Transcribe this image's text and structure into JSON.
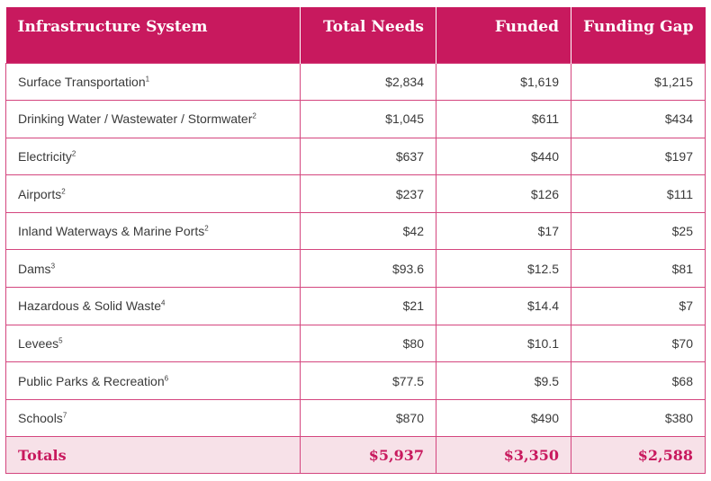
{
  "header": {
    "system": "Infrastructure System",
    "total_needs": "Total Needs",
    "funded": "Funded",
    "gap": "Funding Gap"
  },
  "rows": [
    {
      "system": "Surface Transportation",
      "note": "1",
      "total": "$2,834",
      "funded": "$1,619",
      "gap": "$1,215"
    },
    {
      "system": "Drinking Water / Wastewater / Stormwater",
      "note": "2",
      "total": "$1,045",
      "funded": "$611",
      "gap": "$434"
    },
    {
      "system": "Electricity",
      "note": "2",
      "total": "$637",
      "funded": "$440",
      "gap": "$197"
    },
    {
      "system": "Airports",
      "note": "2",
      "total": "$237",
      "funded": "$126",
      "gap": "$111"
    },
    {
      "system": "Inland Waterways & Marine Ports",
      "note": "2",
      "total": "$42",
      "funded": "$17",
      "gap": "$25"
    },
    {
      "system": "Dams",
      "note": "3",
      "total": "$93.6",
      "funded": "$12.5",
      "gap": "$81"
    },
    {
      "system": "Hazardous & Solid Waste",
      "note": "4",
      "total": "$21",
      "funded": "$14.4",
      "gap": "$7"
    },
    {
      "system": "Levees",
      "note": "5",
      "total": "$80",
      "funded": "$10.1",
      "gap": "$70"
    },
    {
      "system": "Public Parks & Recreation",
      "note": "6",
      "total": "$77.5",
      "funded": "$9.5",
      "gap": "$68"
    },
    {
      "system": "Schools",
      "note": "7",
      "total": "$870",
      "funded": "$490",
      "gap": "$380"
    }
  ],
  "totals": {
    "label": "Totals",
    "total": "$5,937",
    "funded": "$3,350",
    "gap": "$2,588"
  },
  "colors": {
    "header_bg": "#c8195e",
    "totals_bg": "#f7e1e8",
    "border": "#d4467f"
  }
}
